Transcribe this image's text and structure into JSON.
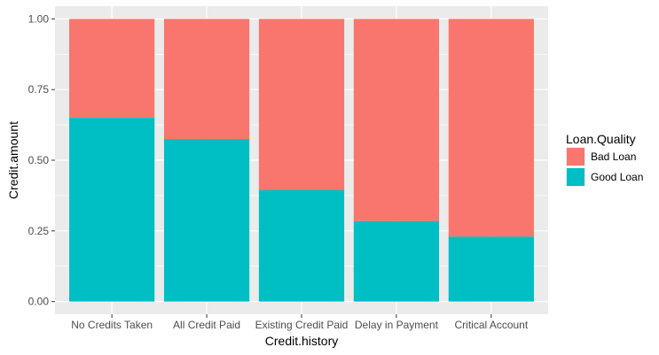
{
  "chart_data": {
    "type": "bar",
    "stacked": true,
    "xlabel": "Credit.history",
    "ylabel": "Credit.amount",
    "ylim": [
      0,
      1
    ],
    "yticks": [
      "0.00",
      "0.25",
      "0.50",
      "0.75",
      "1.00"
    ],
    "ytick_values": [
      0,
      0.25,
      0.5,
      0.75,
      1
    ],
    "grid": true,
    "legend_position": "right",
    "categories": [
      "No Credits Taken",
      "All Credit Paid",
      "Existing Credit Paid",
      "Delay in Payment",
      "Critical Account"
    ],
    "series": [
      {
        "name": "Good Loan",
        "values": [
          0.65,
          0.575,
          0.395,
          0.285,
          0.23
        ],
        "color": "#00BFC4"
      },
      {
        "name": "Bad Loan",
        "values": [
          0.35,
          0.425,
          0.605,
          0.715,
          0.77
        ],
        "color": "#F8766D"
      }
    ]
  },
  "legend": {
    "title": "Loan.Quality",
    "items": [
      {
        "label": "Bad Loan",
        "color": "#F8766D"
      },
      {
        "label": "Good Loan",
        "color": "#00BFC4"
      }
    ]
  },
  "colors": {
    "panel_background": "#EBEBEB",
    "grid_major": "#FFFFFF"
  }
}
